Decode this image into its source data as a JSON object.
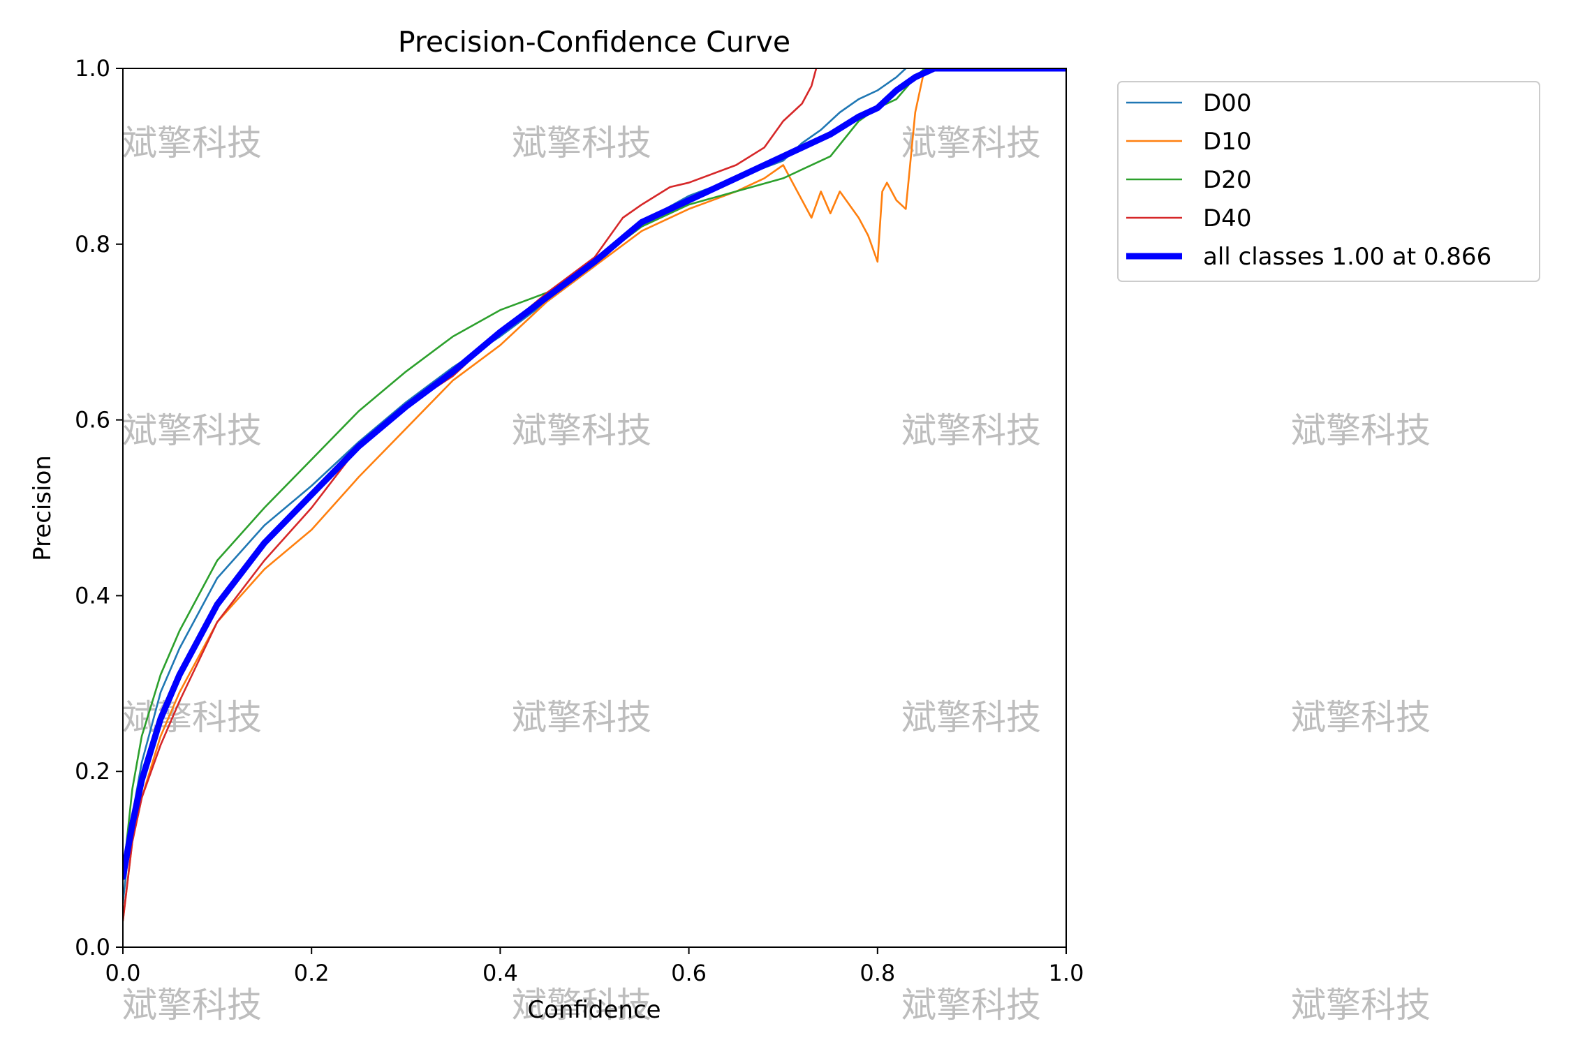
{
  "watermark": {
    "text": "斌擎科技",
    "color": "#bdbdbd"
  },
  "chart_data": {
    "type": "line",
    "title": "Precision-Confidence Curve",
    "xlabel": "Confidence",
    "ylabel": "Precision",
    "xlim": [
      0,
      1
    ],
    "ylim": [
      0,
      1
    ],
    "xticks": [
      "0.0",
      "0.2",
      "0.4",
      "0.6",
      "0.8",
      "1.0"
    ],
    "yticks": [
      "0.0",
      "0.2",
      "0.4",
      "0.6",
      "0.8",
      "1.0"
    ],
    "grid": false,
    "legend_position": "outside-top-right",
    "series": [
      {
        "name": "D00",
        "color": "#1f77b4",
        "x": [
          0.0,
          0.01,
          0.02,
          0.04,
          0.06,
          0.1,
          0.15,
          0.2,
          0.25,
          0.3,
          0.35,
          0.4,
          0.45,
          0.5,
          0.55,
          0.6,
          0.65,
          0.7,
          0.72,
          0.74,
          0.76,
          0.78,
          0.8,
          0.82,
          0.83
        ],
        "y": [
          0.05,
          0.15,
          0.21,
          0.29,
          0.34,
          0.42,
          0.48,
          0.525,
          0.575,
          0.62,
          0.66,
          0.695,
          0.735,
          0.775,
          0.825,
          0.855,
          0.875,
          0.895,
          0.915,
          0.93,
          0.95,
          0.965,
          0.975,
          0.99,
          1.0
        ]
      },
      {
        "name": "D10",
        "color": "#ff7f0e",
        "x": [
          0.0,
          0.01,
          0.02,
          0.04,
          0.06,
          0.1,
          0.15,
          0.2,
          0.25,
          0.3,
          0.35,
          0.4,
          0.45,
          0.5,
          0.55,
          0.6,
          0.65,
          0.68,
          0.7,
          0.71,
          0.72,
          0.73,
          0.74,
          0.75,
          0.76,
          0.77,
          0.78,
          0.79,
          0.8,
          0.805,
          0.81,
          0.82,
          0.83,
          0.84,
          0.85
        ],
        "y": [
          0.03,
          0.12,
          0.17,
          0.24,
          0.29,
          0.37,
          0.43,
          0.475,
          0.535,
          0.59,
          0.645,
          0.685,
          0.735,
          0.775,
          0.815,
          0.84,
          0.86,
          0.875,
          0.89,
          0.87,
          0.85,
          0.83,
          0.86,
          0.835,
          0.86,
          0.845,
          0.83,
          0.81,
          0.78,
          0.86,
          0.87,
          0.85,
          0.84,
          0.95,
          1.0
        ]
      },
      {
        "name": "D20",
        "color": "#2ca02c",
        "x": [
          0.0,
          0.01,
          0.02,
          0.04,
          0.06,
          0.1,
          0.15,
          0.2,
          0.25,
          0.3,
          0.35,
          0.4,
          0.45,
          0.5,
          0.55,
          0.6,
          0.65,
          0.7,
          0.75,
          0.78,
          0.8,
          0.82,
          0.84,
          0.85
        ],
        "y": [
          0.08,
          0.18,
          0.24,
          0.31,
          0.36,
          0.44,
          0.5,
          0.555,
          0.61,
          0.655,
          0.695,
          0.725,
          0.745,
          0.78,
          0.82,
          0.845,
          0.86,
          0.875,
          0.9,
          0.94,
          0.955,
          0.965,
          0.99,
          1.0
        ]
      },
      {
        "name": "D40",
        "color": "#d62728",
        "x": [
          0.0,
          0.01,
          0.02,
          0.04,
          0.06,
          0.1,
          0.15,
          0.2,
          0.25,
          0.3,
          0.35,
          0.4,
          0.45,
          0.5,
          0.53,
          0.55,
          0.58,
          0.6,
          0.65,
          0.68,
          0.7,
          0.71,
          0.72,
          0.73,
          0.735
        ],
        "y": [
          0.03,
          0.12,
          0.17,
          0.23,
          0.28,
          0.37,
          0.44,
          0.5,
          0.57,
          0.615,
          0.65,
          0.7,
          0.745,
          0.785,
          0.83,
          0.845,
          0.865,
          0.87,
          0.89,
          0.91,
          0.94,
          0.95,
          0.96,
          0.98,
          1.0
        ]
      },
      {
        "name": "all classes 1.00 at 0.866",
        "color": "#0000ff",
        "thick": true,
        "x": [
          0.0,
          0.01,
          0.02,
          0.04,
          0.06,
          0.1,
          0.15,
          0.2,
          0.25,
          0.3,
          0.35,
          0.4,
          0.45,
          0.5,
          0.55,
          0.6,
          0.65,
          0.7,
          0.75,
          0.78,
          0.8,
          0.82,
          0.84,
          0.86,
          1.0
        ],
        "y": [
          0.08,
          0.14,
          0.19,
          0.26,
          0.31,
          0.39,
          0.46,
          0.515,
          0.57,
          0.615,
          0.655,
          0.7,
          0.74,
          0.78,
          0.825,
          0.85,
          0.875,
          0.9,
          0.925,
          0.945,
          0.955,
          0.975,
          0.99,
          1.0,
          1.0
        ]
      }
    ]
  }
}
